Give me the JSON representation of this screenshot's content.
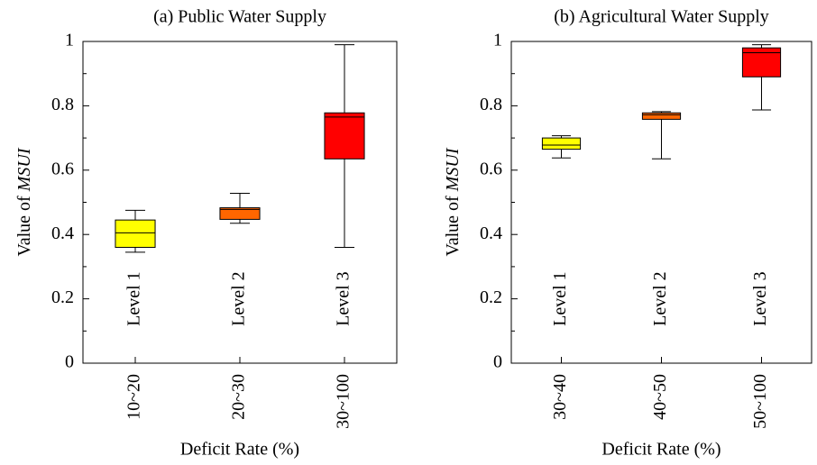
{
  "chart_data": [
    {
      "type": "box",
      "title": "(a) Public Water Supply",
      "xlabel": "Deficit Rate (%)",
      "ylabel": "Value of",
      "ylabel_var": "MSUI",
      "ylim": [
        0,
        1
      ],
      "yticks": [
        0,
        0.2,
        0.4,
        0.6,
        0.8,
        1
      ],
      "yminor": [
        0.1,
        0.3,
        0.5,
        0.7,
        0.9
      ],
      "boxes": [
        {
          "category": "10~20",
          "level": "Level 1",
          "color": "#ffff00",
          "low": 0.345,
          "q1": 0.36,
          "median": 0.405,
          "q3": 0.445,
          "high": 0.475
        },
        {
          "category": "20~30",
          "level": "Level 2",
          "color": "#ff6600",
          "low": 0.435,
          "q1": 0.447,
          "median": 0.478,
          "q3": 0.483,
          "high": 0.528
        },
        {
          "category": "30~100",
          "level": "Level 3",
          "color": "#ff0000",
          "low": 0.36,
          "q1": 0.635,
          "median": 0.765,
          "q3": 0.778,
          "high": 0.99
        }
      ]
    },
    {
      "type": "box",
      "title": "(b) Agricultural Water Supply",
      "xlabel": "Deficit Rate (%)",
      "ylabel": "Value of",
      "ylabel_var": "MSUI",
      "ylim": [
        0,
        1
      ],
      "yticks": [
        0,
        0.2,
        0.4,
        0.6,
        0.8,
        1
      ],
      "yminor": [
        0.1,
        0.3,
        0.5,
        0.7,
        0.9
      ],
      "boxes": [
        {
          "category": "30~40",
          "level": "Level 1",
          "color": "#ffff00",
          "low": 0.638,
          "q1": 0.665,
          "median": 0.678,
          "q3": 0.7,
          "high": 0.707
        },
        {
          "category": "40~50",
          "level": "Level 2",
          "color": "#ff6600",
          "low": 0.635,
          "q1": 0.758,
          "median": 0.772,
          "q3": 0.778,
          "high": 0.782
        },
        {
          "category": "50~100",
          "level": "Level 3",
          "color": "#ff0000",
          "low": 0.787,
          "q1": 0.89,
          "median": 0.965,
          "q3": 0.98,
          "high": 0.99
        }
      ]
    }
  ]
}
